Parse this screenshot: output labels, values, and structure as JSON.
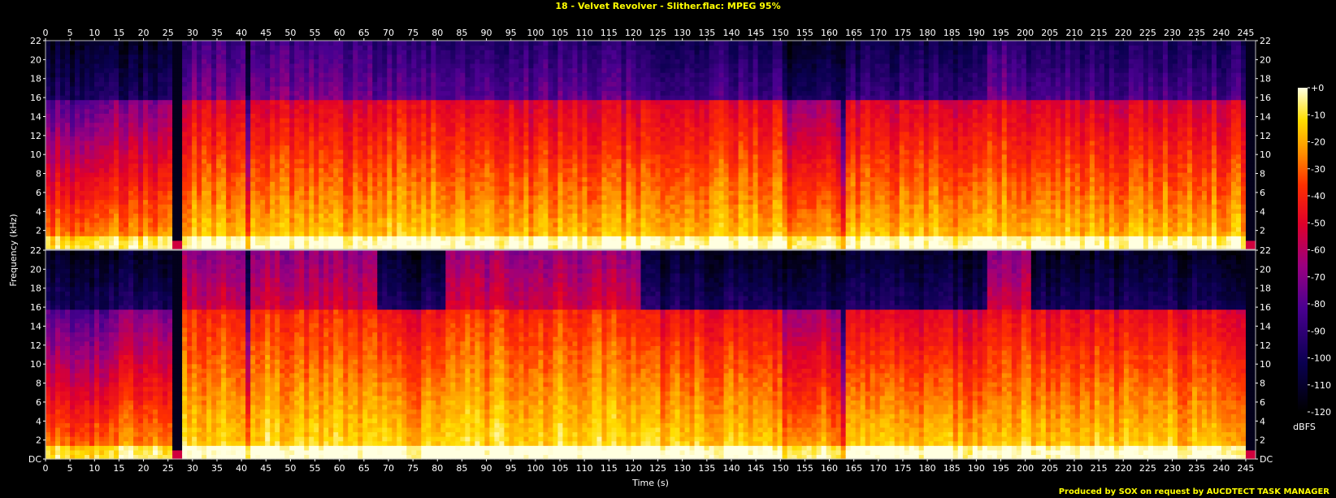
{
  "title": "18 - Velvet Revolver - Slither.flac: MPEG 95%",
  "footer": "Produced by SOX on request by AUCDTECT TASK MANAGER",
  "chart_data": {
    "type": "heatmap",
    "xlabel": "Time (s)",
    "ylabel": "Frequency (kHz)",
    "xlim": [
      0,
      247
    ],
    "ylim": [
      0,
      22
    ],
    "x_ticks": [
      "0",
      "5",
      "10",
      "15",
      "20",
      "25",
      "30",
      "35",
      "40",
      "45",
      "50",
      "55",
      "60",
      "65",
      "70",
      "75",
      "80",
      "85",
      "90",
      "95",
      "100",
      "105",
      "110",
      "115",
      "120",
      "125",
      "130",
      "135",
      "140",
      "145",
      "150",
      "155",
      "160",
      "165",
      "170",
      "175",
      "180",
      "185",
      "190",
      "195",
      "200",
      "205",
      "210",
      "215",
      "220",
      "225",
      "230",
      "235",
      "240",
      "245"
    ],
    "y_ticks": [
      "DC",
      "2",
      "4",
      "6",
      "8",
      "10",
      "12",
      "14",
      "16",
      "18",
      "20",
      "22"
    ],
    "colorbar": {
      "label": "dBFS",
      "ticks": [
        "+0",
        "-10",
        "-20",
        "-30",
        "-40",
        "-50",
        "-60",
        "-70",
        "-80",
        "-90",
        "-100",
        "-110",
        "-120"
      ],
      "range": [
        -120,
        0
      ]
    },
    "channels": [
      {
        "lowpass_khz": 16,
        "segments": [
          {
            "t0": 0,
            "t1": 14,
            "d": 0.25,
            "hi": 0
          },
          {
            "t0": 14,
            "t1": 26,
            "d": 0.35,
            "hi": 0
          },
          {
            "t0": 26,
            "t1": 27.5,
            "d": 0.05,
            "hi": 0
          },
          {
            "t0": 27.5,
            "t1": 41,
            "d": 0.55,
            "hi": 0.5
          },
          {
            "t0": 41,
            "t1": 42,
            "d": 0.2,
            "hi": 0
          },
          {
            "t0": 42,
            "t1": 67,
            "d": 0.55,
            "hi": 0.5
          },
          {
            "t0": 67,
            "t1": 96,
            "d": 0.6,
            "hi": 0.4
          },
          {
            "t0": 96,
            "t1": 122,
            "d": 0.55,
            "hi": 0.4
          },
          {
            "t0": 122,
            "t1": 150,
            "d": 0.6,
            "hi": 0.3
          },
          {
            "t0": 150,
            "t1": 162.5,
            "d": 0.4,
            "hi": 0
          },
          {
            "t0": 162.5,
            "t1": 163.5,
            "d": 0.1,
            "hi": 0
          },
          {
            "t0": 163.5,
            "t1": 192,
            "d": 0.55,
            "hi": 0.2
          },
          {
            "t0": 192,
            "t1": 200,
            "d": 0.6,
            "hi": 0.5
          },
          {
            "t0": 200,
            "t1": 245,
            "d": 0.55,
            "hi": 0.3
          },
          {
            "t0": 245,
            "t1": 247,
            "d": 0.0,
            "hi": 0
          }
        ]
      },
      {
        "lowpass_khz": 16,
        "segments": [
          {
            "t0": 0,
            "t1": 14,
            "d": 0.25,
            "hi": 0
          },
          {
            "t0": 14,
            "t1": 26,
            "d": 0.35,
            "hi": 0
          },
          {
            "t0": 26,
            "t1": 27.5,
            "d": 0.05,
            "hi": 0
          },
          {
            "t0": 27.5,
            "t1": 41,
            "d": 0.7,
            "hi": 0.9
          },
          {
            "t0": 41,
            "t1": 42,
            "d": 0.2,
            "hi": 0
          },
          {
            "t0": 42,
            "t1": 68,
            "d": 0.7,
            "hi": 0.9
          },
          {
            "t0": 68,
            "t1": 82,
            "d": 0.6,
            "hi": 0
          },
          {
            "t0": 82,
            "t1": 96,
            "d": 0.7,
            "hi": 0.9
          },
          {
            "t0": 96,
            "t1": 122,
            "d": 0.7,
            "hi": 0.9
          },
          {
            "t0": 122,
            "t1": 150,
            "d": 0.6,
            "hi": 0
          },
          {
            "t0": 150,
            "t1": 162.5,
            "d": 0.45,
            "hi": 0
          },
          {
            "t0": 162.5,
            "t1": 163.5,
            "d": 0.1,
            "hi": 0
          },
          {
            "t0": 163.5,
            "t1": 192,
            "d": 0.55,
            "hi": 0
          },
          {
            "t0": 192,
            "t1": 201,
            "d": 0.65,
            "hi": 0.9
          },
          {
            "t0": 201,
            "t1": 245,
            "d": 0.6,
            "hi": 0
          },
          {
            "t0": 245,
            "t1": 247,
            "d": 0.0,
            "hi": 0
          }
        ]
      }
    ]
  }
}
